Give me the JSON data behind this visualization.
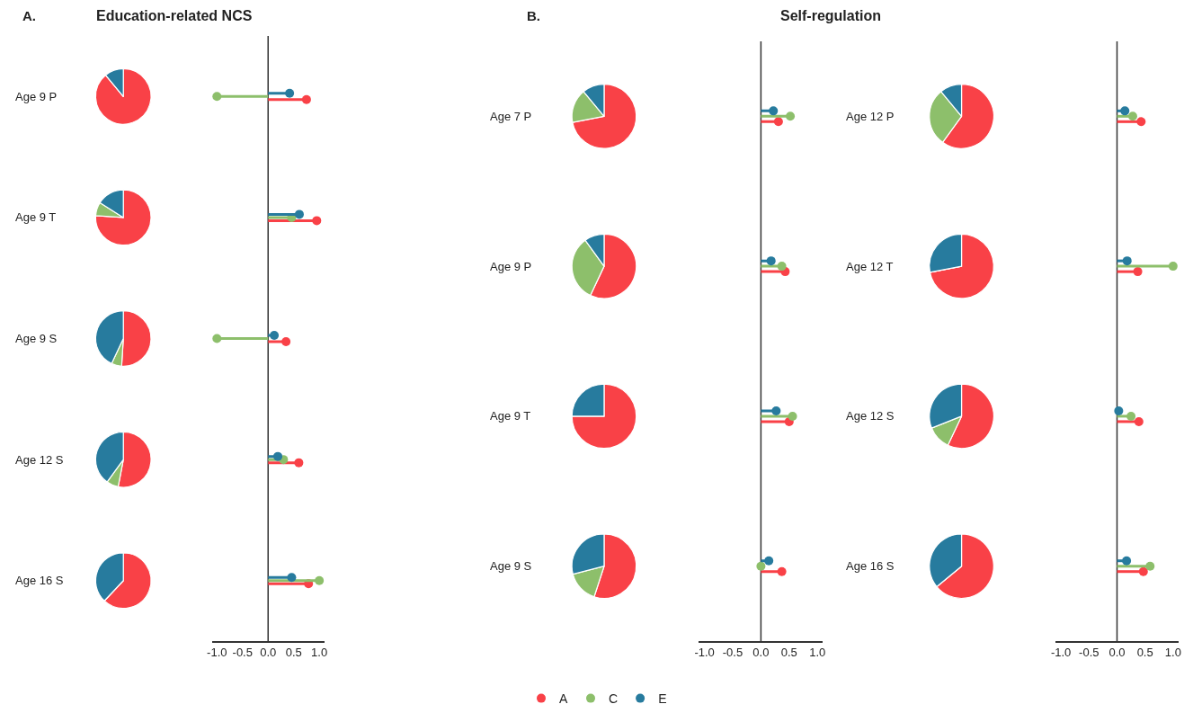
{
  "chart_data": [
    {
      "type": "pie",
      "title": "Age 9 P",
      "annotations": [
        "A.",
        "Education-related NCS"
      ],
      "categories": [
        null,
        null,
        null
      ],
      "values": [
        89,
        0,
        11
      ],
      "colors": [
        "#f94147",
        "#8dbf6b",
        "#277b9e"
      ]
    },
    {
      "type": "pie",
      "title": "Age 9 T",
      "categories": [
        null,
        null,
        null
      ],
      "values": [
        76,
        8,
        16
      ],
      "colors": [
        "#f94147",
        "#8dbf6b",
        "#277b9e"
      ]
    },
    {
      "type": "pie",
      "title": "Age 9 S",
      "categories": [
        null,
        null,
        null
      ],
      "values": [
        51,
        6,
        43
      ],
      "colors": [
        "#f94147",
        "#8dbf6b",
        "#277b9e"
      ]
    },
    {
      "type": "pie",
      "title": "Age 12 S",
      "categories": [
        null,
        null,
        null
      ],
      "values": [
        53,
        7,
        40
      ],
      "colors": [
        "#f94147",
        "#8dbf6b",
        "#277b9e"
      ]
    },
    {
      "type": "pie",
      "title": "Age 16 S",
      "categories": [
        null,
        null,
        null
      ],
      "values": [
        62,
        0,
        38
      ],
      "colors": [
        "#f94147",
        "#8dbf6b",
        "#277b9e"
      ]
    },
    {
      "type": "lollipop",
      "orientation": "horizontal",
      "categories": [
        null,
        null,
        null,
        null,
        null
      ],
      "legend": "bottom",
      "series": [
        {
          "name": "A",
          "color": "#f94147",
          "values": [
            0.75,
            0.95,
            0.35,
            0.6,
            0.79
          ]
        },
        {
          "name": "C",
          "color": "#8dbf6b",
          "values": [
            -1.0,
            0.46,
            -1.0,
            0.3,
            1.0
          ]
        },
        {
          "name": "E",
          "color": "#277b9e",
          "values": [
            0.42,
            0.61,
            0.12,
            0.19,
            0.46
          ]
        }
      ],
      "xlim": [
        -1.1,
        1.1
      ],
      "xticks": [
        {
          "value": -1,
          "label": "-1.0"
        },
        {
          "value": -0.5,
          "label": "-0.5"
        },
        {
          "value": 0,
          "label": "0.0"
        },
        {
          "value": 0.5,
          "label": "0.5"
        },
        {
          "value": 1,
          "label": "1.0"
        }
      ],
      "tick_labels": "x",
      "ref_lines": [
        {
          "axis": "x",
          "value": 0
        }
      ]
    },
    {
      "type": "pie",
      "title": "Age 7 P",
      "annotations": [
        "B.",
        "Self-regulation"
      ],
      "categories": [
        null,
        null,
        null
      ],
      "values": [
        72,
        17,
        11
      ],
      "colors": [
        "#f94147",
        "#8dbf6b",
        "#277b9e"
      ]
    },
    {
      "type": "pie",
      "title": "Age 9 P",
      "categories": [
        null,
        null,
        null
      ],
      "values": [
        57,
        33,
        10
      ],
      "colors": [
        "#f94147",
        "#8dbf6b",
        "#277b9e"
      ]
    },
    {
      "type": "pie",
      "title": "Age 9 T",
      "categories": [
        null,
        null,
        null
      ],
      "values": [
        75,
        0,
        25
      ],
      "colors": [
        "#f94147",
        "#8dbf6b",
        "#277b9e"
      ]
    },
    {
      "type": "pie",
      "title": "Age 9 S",
      "categories": [
        null,
        null,
        null
      ],
      "values": [
        55,
        16,
        29
      ],
      "colors": [
        "#f94147",
        "#8dbf6b",
        "#277b9e"
      ]
    },
    {
      "type": "lollipop",
      "orientation": "horizontal",
      "categories": [
        null,
        null,
        null,
        null
      ],
      "series": [
        {
          "name": "A",
          "color": "#f94147",
          "values": [
            0.31,
            0.43,
            0.5,
            0.37
          ]
        },
        {
          "name": "C",
          "color": "#8dbf6b",
          "values": [
            0.52,
            0.37,
            0.56,
            0.0
          ]
        },
        {
          "name": "E",
          "color": "#277b9e",
          "values": [
            0.22,
            0.18,
            0.27,
            0.14
          ]
        }
      ],
      "xlim": [
        -1.1,
        1.1
      ],
      "xticks": [
        {
          "value": -1,
          "label": "-1.0"
        },
        {
          "value": -0.5,
          "label": "-0.5"
        },
        {
          "value": 0,
          "label": "0.0"
        },
        {
          "value": 0.5,
          "label": "0.5"
        },
        {
          "value": 1,
          "label": "1.0"
        }
      ],
      "tick_labels": "x",
      "ref_lines": [
        {
          "axis": "x",
          "value": 0
        }
      ]
    },
    {
      "type": "pie",
      "title": "Age 12 P",
      "categories": [
        null,
        null,
        null
      ],
      "values": [
        60,
        29,
        11
      ],
      "colors": [
        "#f94147",
        "#8dbf6b",
        "#277b9e"
      ]
    },
    {
      "type": "pie",
      "title": "Age 12 T",
      "categories": [
        null,
        null,
        null
      ],
      "values": [
        72,
        0,
        28
      ],
      "colors": [
        "#f94147",
        "#8dbf6b",
        "#277b9e"
      ]
    },
    {
      "type": "pie",
      "title": "Age 12 S",
      "categories": [
        null,
        null,
        null
      ],
      "values": [
        57,
        12,
        31
      ],
      "colors": [
        "#f94147",
        "#8dbf6b",
        "#277b9e"
      ]
    },
    {
      "type": "pie",
      "title": "Age 16 S",
      "categories": [
        null,
        null,
        null
      ],
      "values": [
        64,
        0,
        36
      ],
      "colors": [
        "#f94147",
        "#8dbf6b",
        "#277b9e"
      ]
    },
    {
      "type": "lollipop",
      "orientation": "horizontal",
      "categories": [
        null,
        null,
        null,
        null
      ],
      "series": [
        {
          "name": "A",
          "color": "#f94147",
          "values": [
            0.43,
            0.37,
            0.39,
            0.47
          ]
        },
        {
          "name": "C",
          "color": "#8dbf6b",
          "values": [
            0.28,
            1.0,
            0.25,
            0.59
          ]
        },
        {
          "name": "E",
          "color": "#277b9e",
          "values": [
            0.14,
            0.18,
            0.03,
            0.17
          ]
        }
      ],
      "xlim": [
        -1.1,
        1.1
      ],
      "xticks": [
        {
          "value": -1,
          "label": "-1.0"
        },
        {
          "value": -0.5,
          "label": "-0.5"
        },
        {
          "value": 0,
          "label": "0.0"
        },
        {
          "value": 0.5,
          "label": "0.5"
        },
        {
          "value": 1,
          "label": "1.0"
        }
      ],
      "tick_labels": "x",
      "ref_lines": [
        {
          "axis": "x",
          "value": 0
        }
      ]
    }
  ]
}
